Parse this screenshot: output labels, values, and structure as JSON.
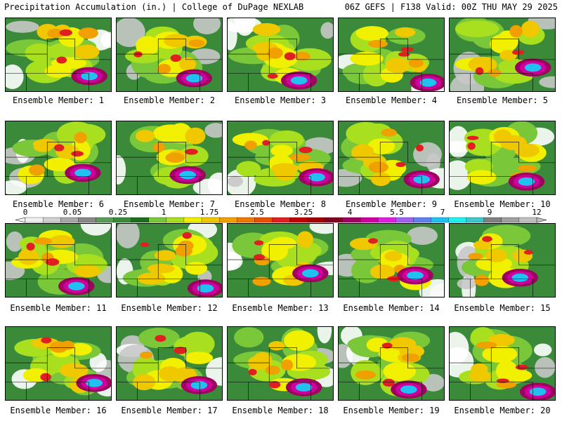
{
  "header": {
    "left": "Precipitation Accumulation (in.) | College of DuPage NEXLAB",
    "right": "06Z GEFS | F138 Valid: 00Z THU MAY 29 2025"
  },
  "members": [
    "Ensemble Member: 1",
    "Ensemble Member: 2",
    "Ensemble Member: 3",
    "Ensemble Member: 4",
    "Ensemble Member: 5",
    "Ensemble Member: 6",
    "Ensemble Member: 7",
    "Ensemble Member: 8",
    "Ensemble Member: 9",
    "Ensemble Member: 10",
    "Ensemble Member: 11",
    "Ensemble Member: 12",
    "Ensemble Member: 13",
    "Ensemble Member: 14",
    "Ensemble Member: 15",
    "Ensemble Member: 16",
    "Ensemble Member: 17",
    "Ensemble Member: 18",
    "Ensemble Member: 19",
    "Ensemble Member: 20"
  ],
  "colorbar": {
    "labels": [
      "0",
      "0.05",
      "0.25",
      "1",
      "1.75",
      "2.5",
      "3.25",
      "4",
      "5.5",
      "7",
      "9",
      "12"
    ],
    "colors": [
      "#f0f0f0",
      "#d0d0d0",
      "#a8a8a8",
      "#888888",
      "#5a9a5a",
      "#3a8a3a",
      "#1e6e1e",
      "#7ac83a",
      "#a8e020",
      "#f0f000",
      "#f0c800",
      "#f0a000",
      "#f07800",
      "#e85000",
      "#e02020",
      "#c00000",
      "#a00000",
      "#800020",
      "#a00060",
      "#d000a0",
      "#e020e0",
      "#a060f0",
      "#6080f0",
      "#20c0f0",
      "#20f0f0",
      "#40c8c8",
      "#808080",
      "#a0a0a0",
      "#c0c0c0"
    ]
  }
}
